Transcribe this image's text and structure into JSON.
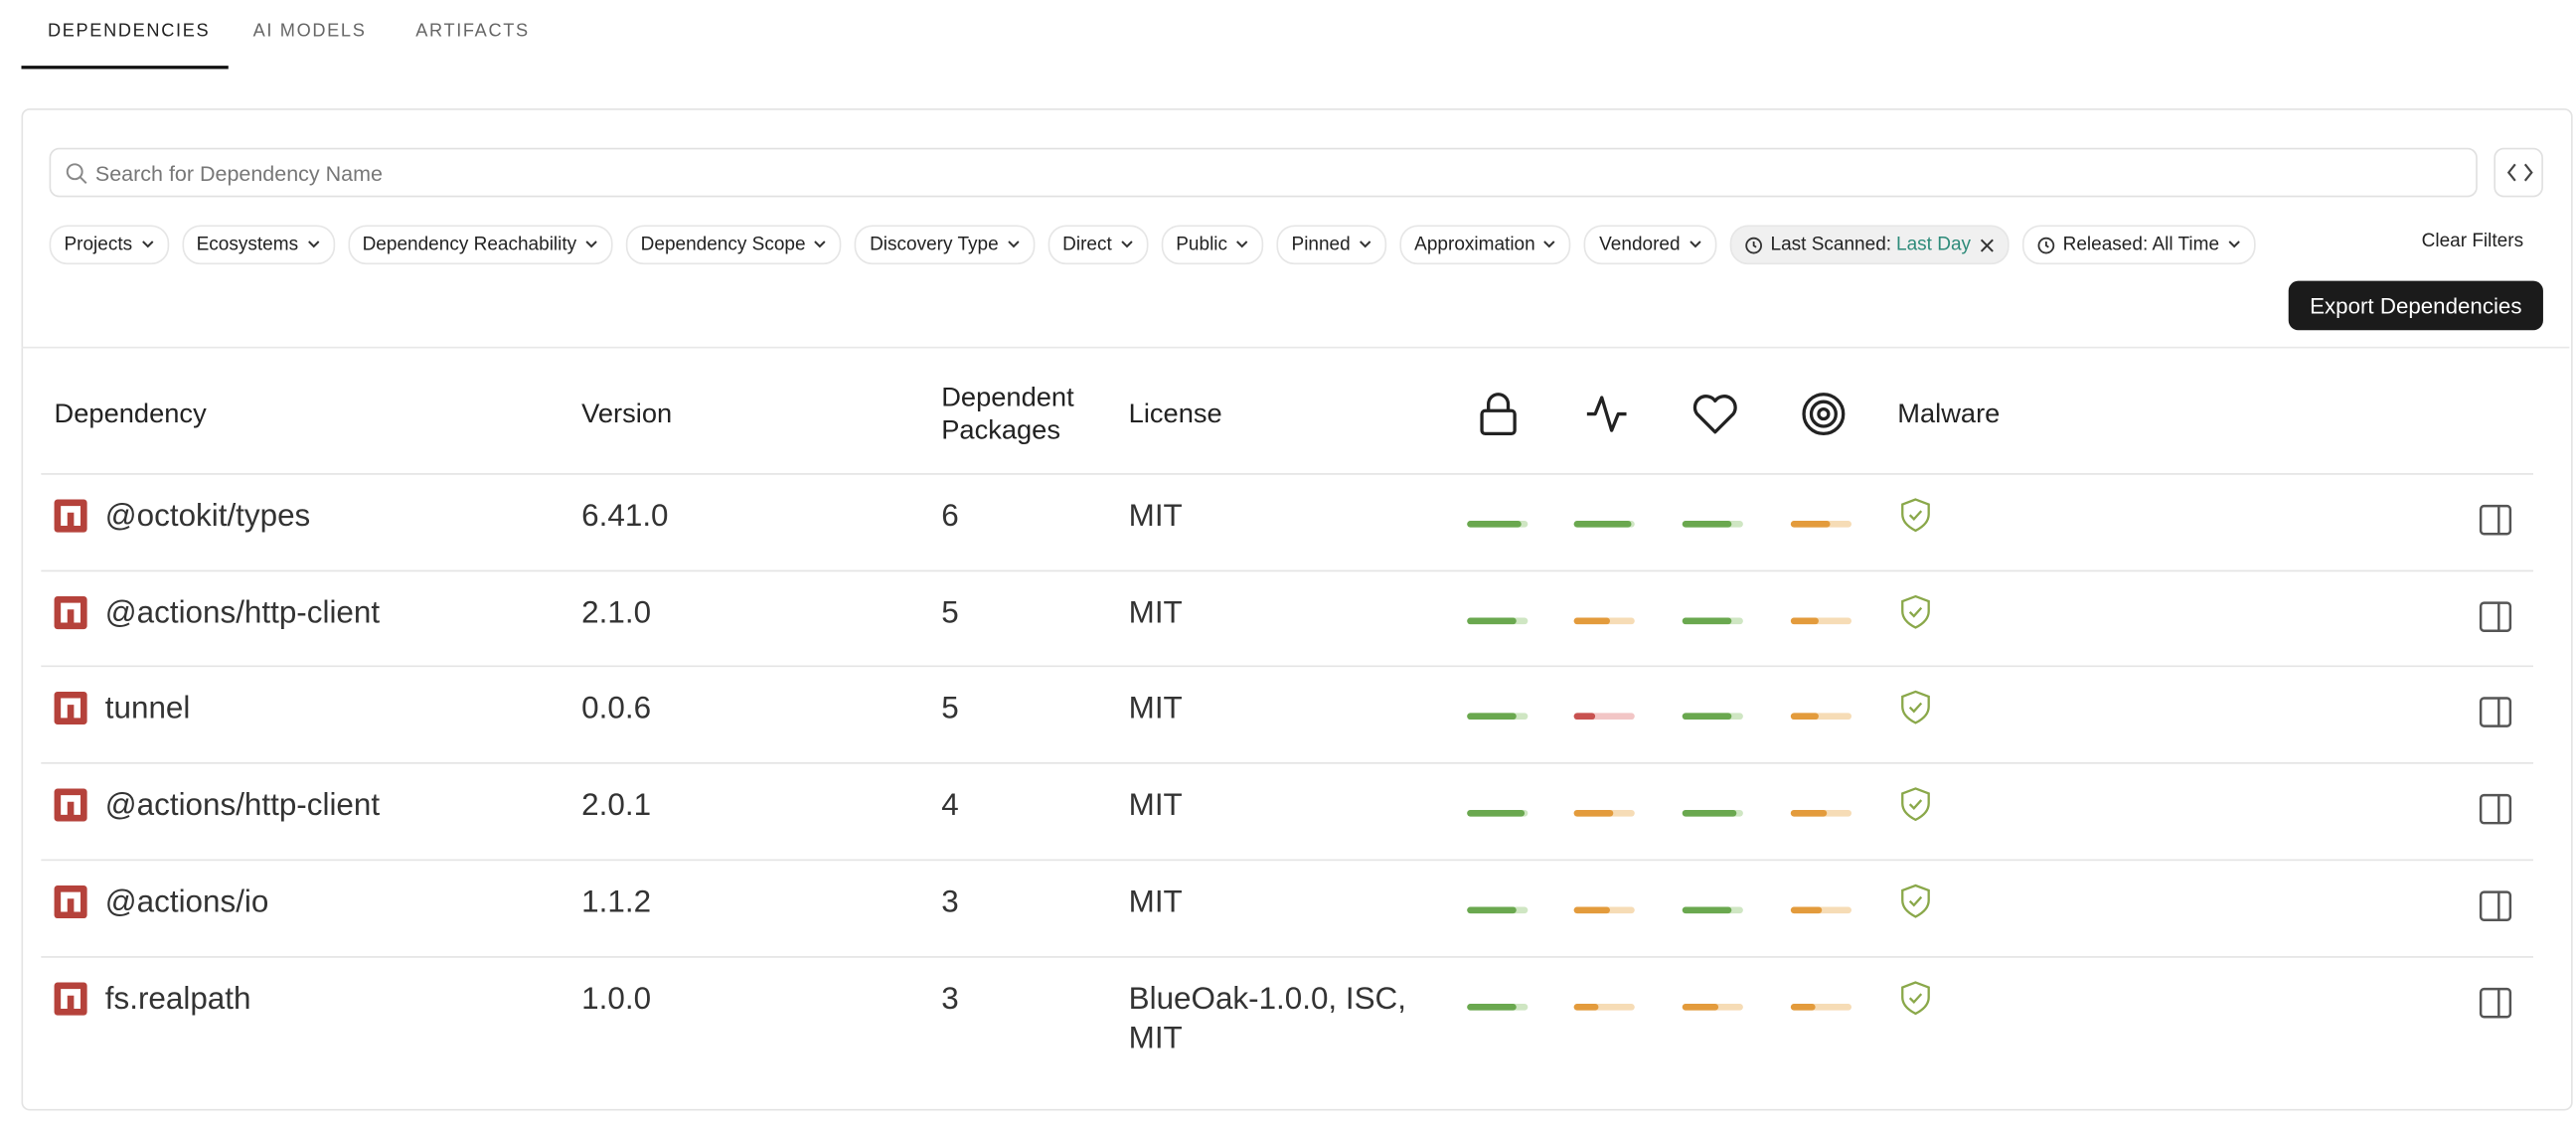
{
  "tabs": [
    "DEPENDENCIES",
    "AI MODELS",
    "ARTIFACTS"
  ],
  "search": {
    "placeholder": "Search for Dependency Name"
  },
  "filters": [
    "Projects",
    "Ecosystems",
    "Dependency Reachability",
    "Dependency Scope",
    "Discovery Type",
    "Direct",
    "Public",
    "Pinned",
    "Approximation",
    "Vendored"
  ],
  "active_filters": [
    {
      "label": "Last Scanned:",
      "value": "Last Day"
    },
    {
      "label": "Released: All Time"
    }
  ],
  "clear_filters": "Clear Filters",
  "export_button": "Export Dependencies",
  "table": {
    "headers": [
      "Dependency",
      "Version",
      "Dependent Packages",
      "License",
      "Malware"
    ],
    "score_max": 10,
    "rows": [
      {
        "name": "@octokit/types",
        "version": "6.41.0",
        "dependents": "6",
        "license": "MIT",
        "scores": [
          9,
          9.5,
          8,
          6.5
        ]
      },
      {
        "name": "@actions/http-client",
        "version": "2.1.0",
        "dependents": "5",
        "license": "MIT",
        "scores": [
          8,
          6,
          8,
          4.5
        ]
      },
      {
        "name": "tunnel",
        "version": "0.0.6",
        "dependents": "5",
        "license": "MIT",
        "scores": [
          8,
          3.5,
          8,
          4.5
        ]
      },
      {
        "name": "@actions/http-client",
        "version": "2.0.1",
        "dependents": "4",
        "license": "MIT",
        "scores": [
          9.5,
          6.5,
          9,
          6
        ]
      },
      {
        "name": "@actions/io",
        "version": "1.1.2",
        "dependents": "3",
        "license": "MIT",
        "scores": [
          8,
          6,
          8,
          5
        ]
      },
      {
        "name": "fs.realpath",
        "version": "1.0.0",
        "dependents": "3",
        "license": "BlueOak-1.0.0, ISC, MIT",
        "scores": [
          8,
          4,
          6,
          4
        ]
      }
    ]
  }
}
